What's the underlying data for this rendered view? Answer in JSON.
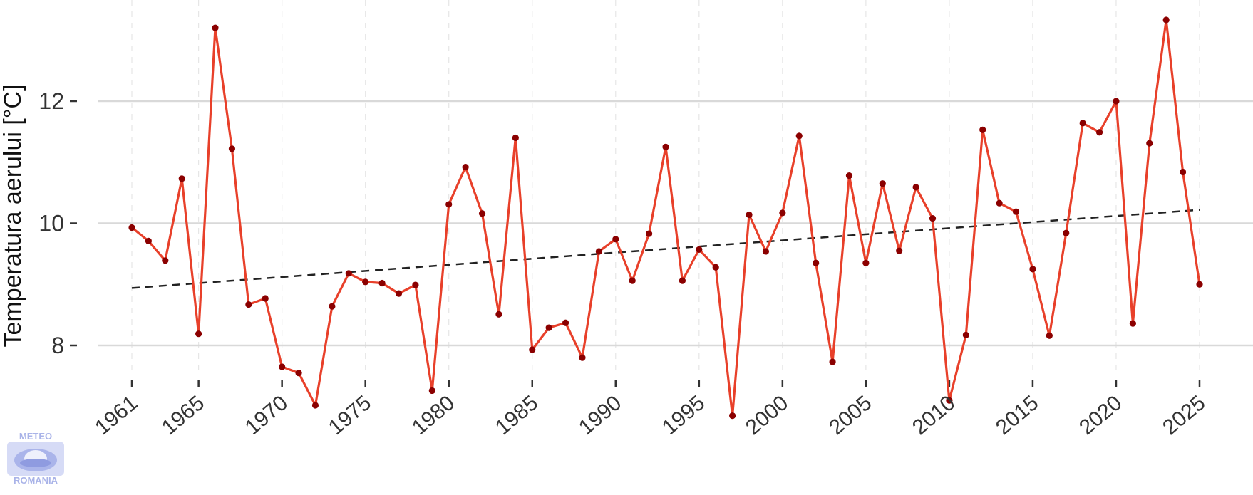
{
  "chart_data": {
    "type": "line",
    "title": "",
    "xlabel": "",
    "ylabel": "Temperatura aerului [°C]",
    "xlim": [
      1961,
      2025
    ],
    "ylim": [
      6.6,
      13.6
    ],
    "x_ticks": [
      1961,
      1965,
      1970,
      1975,
      1980,
      1985,
      1990,
      1995,
      2000,
      2005,
      2010,
      2015,
      2020,
      2025
    ],
    "y_ticks": [
      8,
      10,
      12
    ],
    "grid": true,
    "legend": "none",
    "series": [
      {
        "x": [
          1961,
          1962,
          1963,
          1964,
          1965,
          1966,
          1967,
          1968,
          1969,
          1970,
          1971,
          1972,
          1973,
          1974,
          1975,
          1976,
          1977,
          1978,
          1979,
          1980,
          1981,
          1982,
          1983,
          1984,
          1985,
          1986,
          1987,
          1988,
          1989,
          1990,
          1991,
          1992,
          1993,
          1994,
          1995,
          1996,
          1997,
          1998,
          1999,
          2000,
          2001,
          2002,
          2003,
          2004,
          2005,
          2006,
          2007,
          2008,
          2009,
          2010,
          2011,
          2012,
          2013,
          2014,
          2015,
          2016,
          2017,
          2018,
          2019,
          2020,
          2021,
          2022,
          2023,
          2024,
          2025
        ],
        "values": [
          9.93,
          9.71,
          9.39,
          10.73,
          8.19,
          13.2,
          11.22,
          8.67,
          8.77,
          7.65,
          7.55,
          7.02,
          8.64,
          9.18,
          9.04,
          9.02,
          8.85,
          8.99,
          7.26,
          10.31,
          10.92,
          10.16,
          8.51,
          11.4,
          7.93,
          8.29,
          8.37,
          7.8,
          9.54,
          9.74,
          9.06,
          9.83,
          11.25,
          9.06,
          9.57,
          9.28,
          6.85,
          10.14,
          9.54,
          10.17,
          11.43,
          9.35,
          7.73,
          10.78,
          9.35,
          10.65,
          9.55,
          10.59,
          10.08,
          7.1,
          8.17,
          11.53,
          10.33,
          10.19,
          9.25,
          8.16,
          9.84,
          11.64,
          11.49,
          12.0,
          8.36,
          11.31,
          13.33,
          10.84,
          9.0
        ],
        "color": "#e8402a"
      }
    ],
    "trend": {
      "x": [
        1961,
        2025
      ],
      "values": [
        8.94,
        10.22
      ],
      "style": "dashed",
      "color": "#222222"
    },
    "colors": {
      "line": "#e8402a",
      "points": "#8b0000",
      "grid_major": "#d9d9d9",
      "grid_minor": "#e6e6e6",
      "text": "#333333"
    }
  },
  "logo": {
    "top_text": "METEO",
    "bottom_text": "ROMANIA"
  }
}
